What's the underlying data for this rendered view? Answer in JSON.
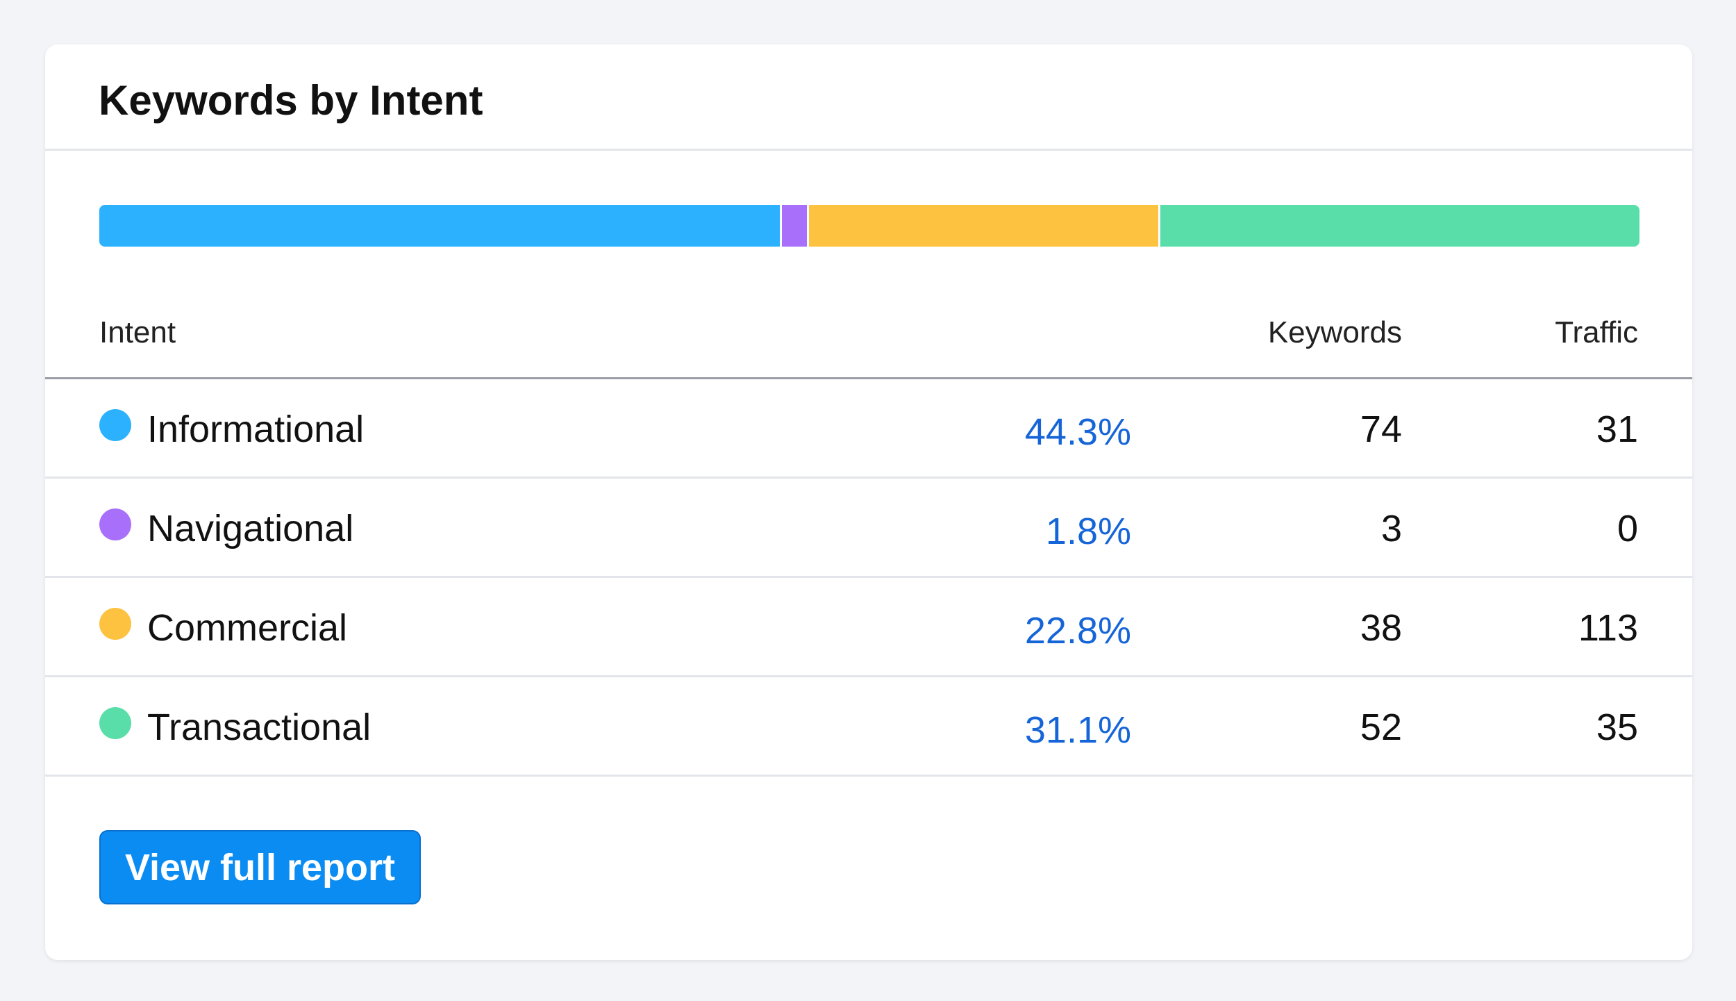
{
  "title": "Keywords by Intent",
  "table": {
    "headers": [
      "Intent",
      "Keywords",
      "Traffic"
    ],
    "rows": [
      {
        "name": "Informational",
        "color": "#2bb1fd",
        "share": 44.3,
        "share_label": "44.3%",
        "keywords": 74,
        "traffic": 31
      },
      {
        "name": "Navigational",
        "color": "#a76ffa",
        "share": 1.8,
        "share_label": "1.8%",
        "keywords": 3,
        "traffic": 0
      },
      {
        "name": "Commercial",
        "color": "#fdc23f",
        "share": 22.8,
        "share_label": "22.8%",
        "keywords": 38,
        "traffic": 113
      },
      {
        "name": "Transactional",
        "color": "#59dea9",
        "share": 31.1,
        "share_label": "31.1%",
        "keywords": 52,
        "traffic": 35
      }
    ]
  },
  "button": "View full report"
}
